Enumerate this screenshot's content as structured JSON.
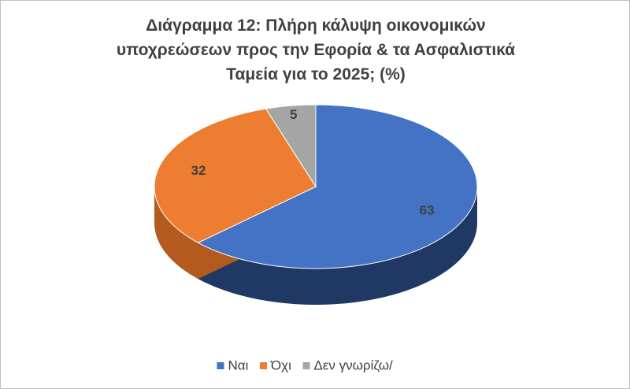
{
  "chart_data": {
    "type": "pie3d",
    "title": "Διάγραμμα 12: Πλήρη κάλυψη οικονομικών υποχρεώσεων προς την Εφορία & τα Ασφαλιστικά Ταμεία για το 2025; (%)",
    "categories": [
      "Ναι",
      "Όχι",
      "Δεν γνωρίζω/"
    ],
    "values": [
      63,
      32,
      5
    ],
    "colors": [
      "#4472c4",
      "#ed7d31",
      "#a5a5a5"
    ],
    "side_colors": [
      "#1f3864",
      "#b35a1e",
      "#7a7a7a"
    ],
    "legend": "bottom"
  }
}
